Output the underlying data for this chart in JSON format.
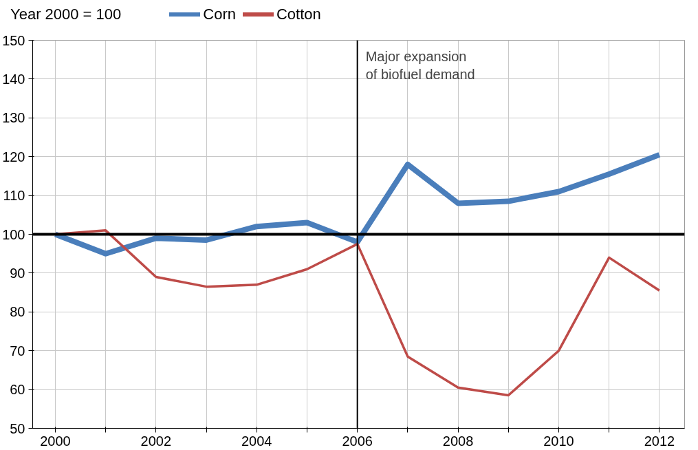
{
  "chart_data": {
    "type": "line",
    "annotations": [
      "Year 2000 = 100"
    ],
    "x": [
      2000,
      2001,
      2002,
      2003,
      2004,
      2005,
      2006,
      2007,
      2008,
      2009,
      2010,
      2011,
      2012
    ],
    "series": [
      {
        "name": "Corn",
        "color": "#4a7ebb",
        "values": [
          100,
          95,
          99,
          98.5,
          102,
          103,
          98,
          118,
          108,
          108.5,
          111,
          115.5,
          120.5
        ]
      },
      {
        "name": "Cotton",
        "color": "#be4b48",
        "values": [
          100,
          101,
          89,
          86.5,
          87,
          91,
          97.5,
          68.5,
          60.5,
          58.5,
          70,
          94,
          85.5
        ]
      }
    ],
    "xlim": [
      1999.55,
      2012.5
    ],
    "ylim": [
      50,
      150
    ],
    "xticks": [
      2000,
      {
        "value": 2001,
        "label": null
      },
      2002,
      {
        "value": 2003,
        "label": null
      },
      2004,
      {
        "value": 2005,
        "label": null
      },
      2006,
      {
        "value": 2007,
        "label": null
      },
      2008,
      {
        "value": 2009,
        "label": null
      },
      2010,
      {
        "value": 2011,
        "label": null
      },
      2012
    ],
    "yticks": [
      50,
      60,
      70,
      80,
      90,
      100,
      110,
      120,
      130,
      140,
      150
    ],
    "ref_lines": [
      {
        "axis": "y",
        "value": 100,
        "color": "#000000"
      },
      {
        "axis": "x",
        "value": 2006,
        "color": "#000000",
        "label": "Major expansion\nof biofuel demand"
      }
    ],
    "grid": true,
    "legend": "top",
    "marker": "none",
    "line_style": "solid"
  }
}
